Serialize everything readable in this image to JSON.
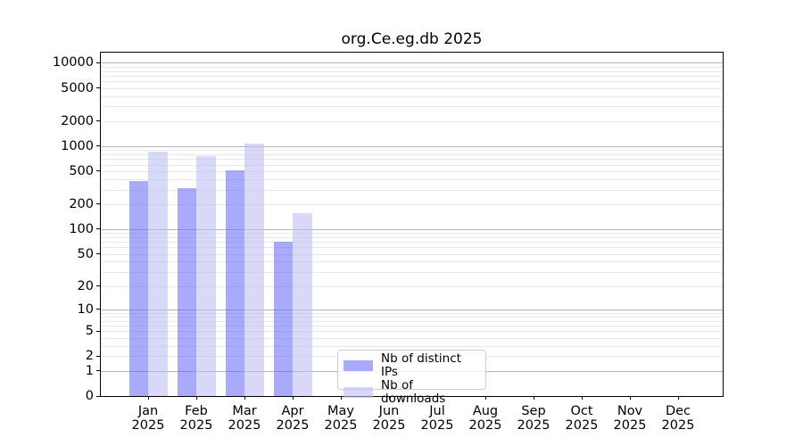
{
  "chart_data": {
    "type": "bar",
    "title": "org.Ce.eg.db 2025",
    "x_categories": [
      "Jan",
      "Feb",
      "Mar",
      "Apr",
      "May",
      "Jun",
      "Jul",
      "Aug",
      "Sep",
      "Oct",
      "Nov",
      "Dec"
    ],
    "x_year": "2025",
    "series": [
      {
        "name": "Nb of distinct IPs",
        "color": "#6464f5",
        "alpha": 0.55,
        "values": [
          380,
          315,
          510,
          70,
          null,
          null,
          null,
          null,
          null,
          null,
          null,
          null
        ]
      },
      {
        "name": "Nb of downloads",
        "color": "#bebef5",
        "alpha": 0.6,
        "values": [
          850,
          760,
          1080,
          155,
          null,
          null,
          null,
          null,
          null,
          null,
          null,
          null
        ]
      }
    ],
    "yticks": [
      0,
      1,
      2,
      5,
      10,
      20,
      50,
      100,
      200,
      500,
      1000,
      2000,
      5000,
      10000
    ],
    "scale": "log10(value+1)",
    "ylim": [
      0,
      13250
    ],
    "grid": true,
    "legend_position": "lower center",
    "colors": {
      "grid_major": "#b3b3b3",
      "grid_minor": "#e8e8e8",
      "spine": "#000000",
      "background": "#ffffff"
    }
  }
}
